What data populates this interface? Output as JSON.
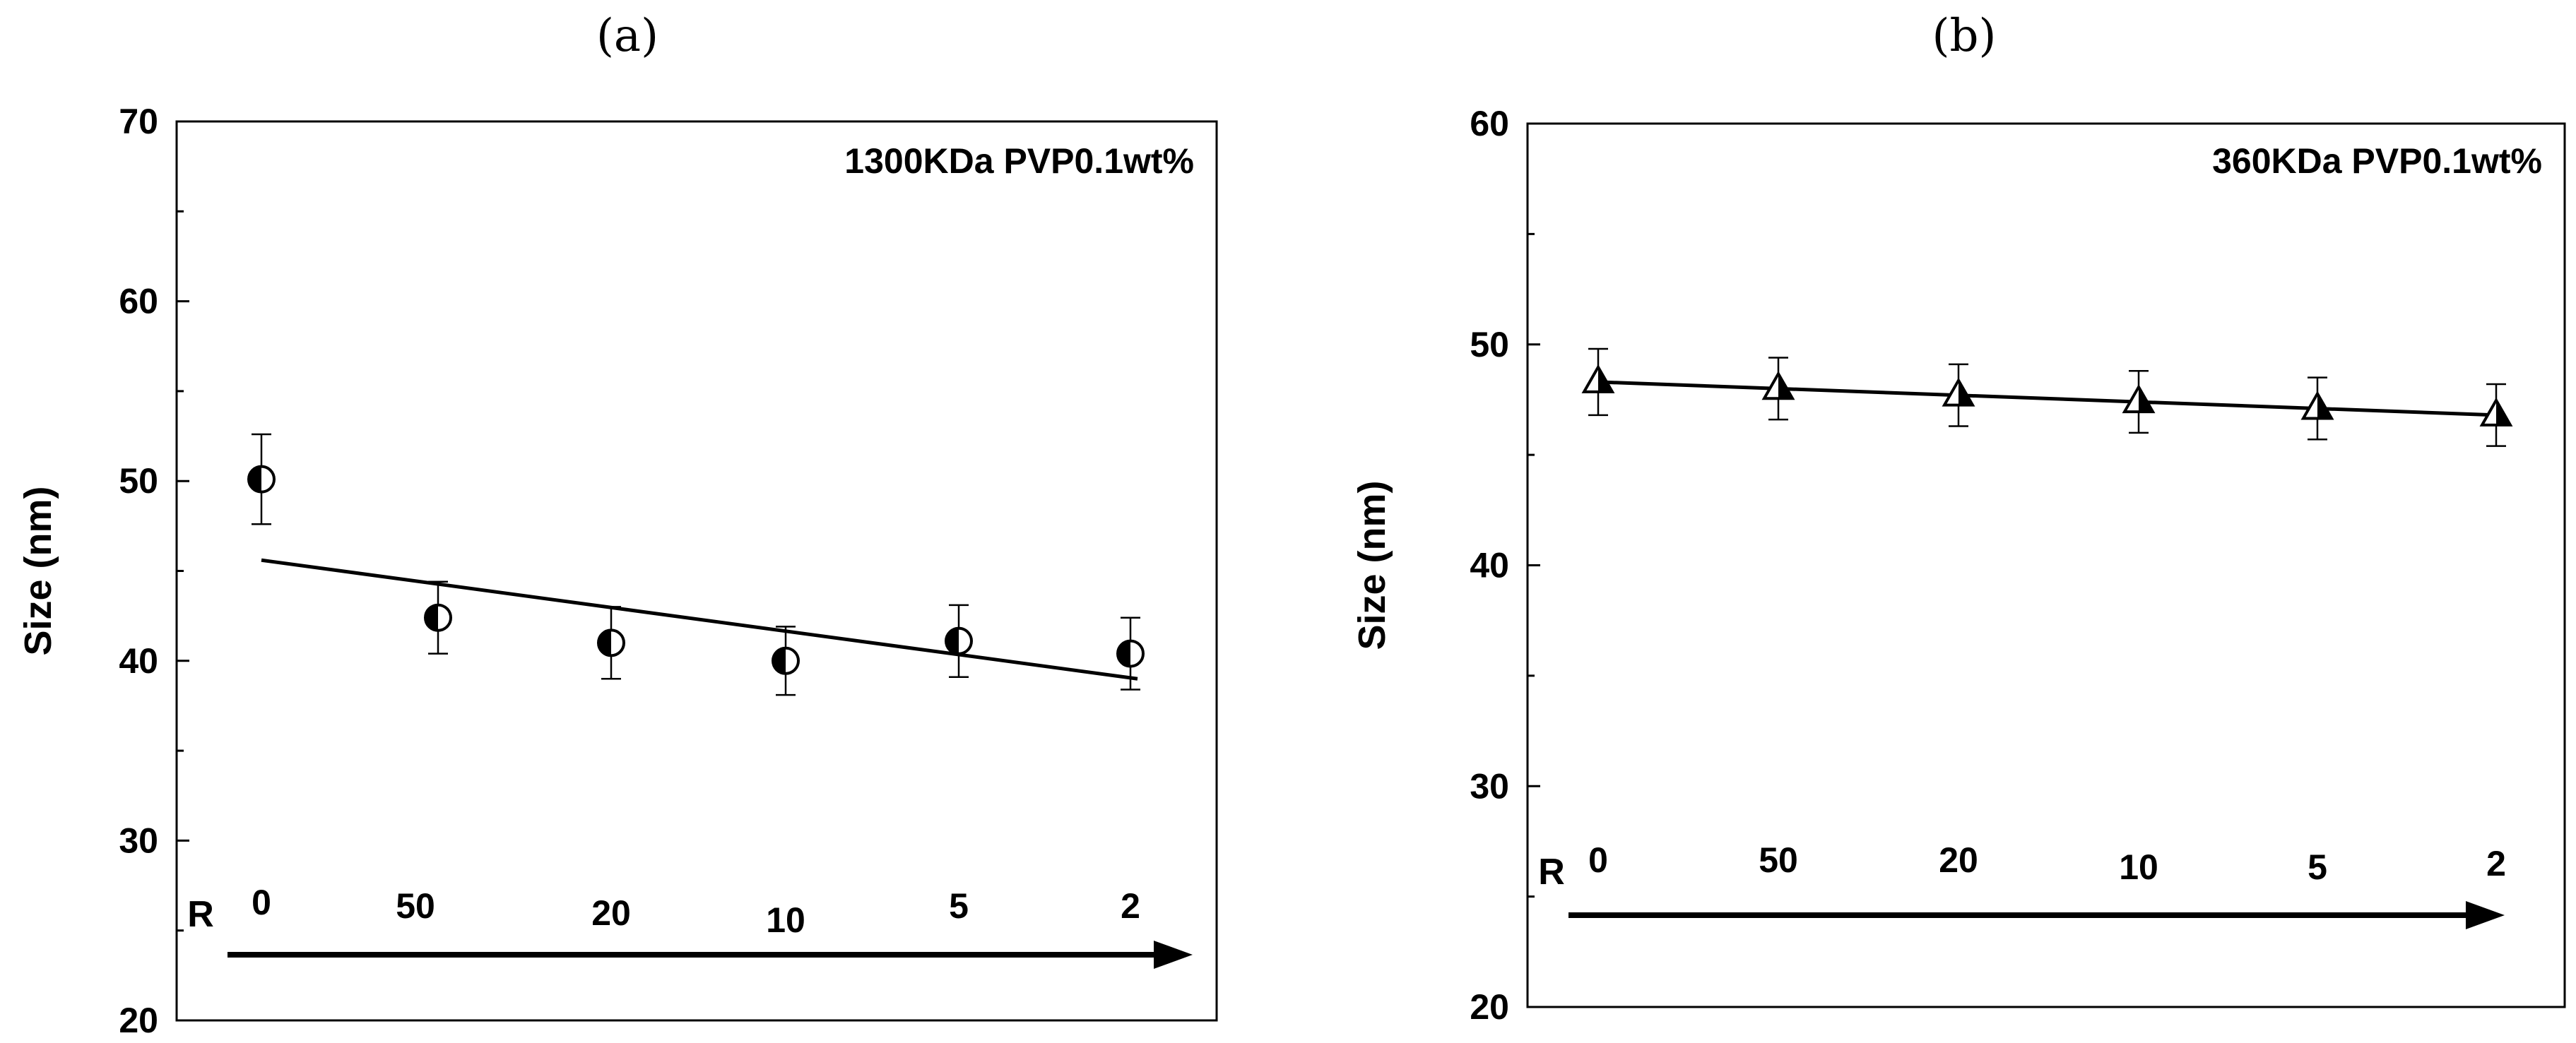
{
  "chart_data": [
    {
      "type": "scatter",
      "panel_label": "(a)",
      "annotation": "1300KDa PVP0.1wt%",
      "title": "",
      "xlabel": "",
      "ylabel": "Size (nm)",
      "ylim": [
        20,
        70
      ],
      "yticks": [
        20,
        30,
        40,
        50,
        60,
        70
      ],
      "r_axis_label": "R",
      "categories": [
        "0",
        "50",
        "20",
        "10",
        "5",
        "2"
      ],
      "series": [
        {
          "marker": "half-filled-circle",
          "values": [
            50.1,
            42.4,
            41.0,
            40.0,
            41.1,
            40.4
          ],
          "errors": [
            2.5,
            2.0,
            2.0,
            1.9,
            2.0,
            2.0
          ]
        }
      ],
      "fit_line": {
        "start": 45.6,
        "end": 39.0
      },
      "grid": false,
      "legend": "none"
    },
    {
      "type": "scatter",
      "panel_label": "(b)",
      "annotation": "360KDa PVP0.1wt%",
      "title": "",
      "xlabel": "",
      "ylabel": "Size (nm)",
      "ylim": [
        20,
        60
      ],
      "yticks": [
        20,
        30,
        40,
        50,
        60
      ],
      "r_axis_label": "R",
      "categories": [
        "0",
        "50",
        "20",
        "10",
        "5",
        "2"
      ],
      "series": [
        {
          "marker": "half-filled-triangle",
          "values": [
            48.3,
            48.0,
            47.7,
            47.4,
            47.1,
            46.8
          ],
          "errors": [
            1.5,
            1.4,
            1.4,
            1.4,
            1.4,
            1.4
          ]
        }
      ],
      "fit_line": {
        "start": 48.3,
        "end": 46.8
      },
      "grid": false,
      "legend": "none"
    }
  ]
}
